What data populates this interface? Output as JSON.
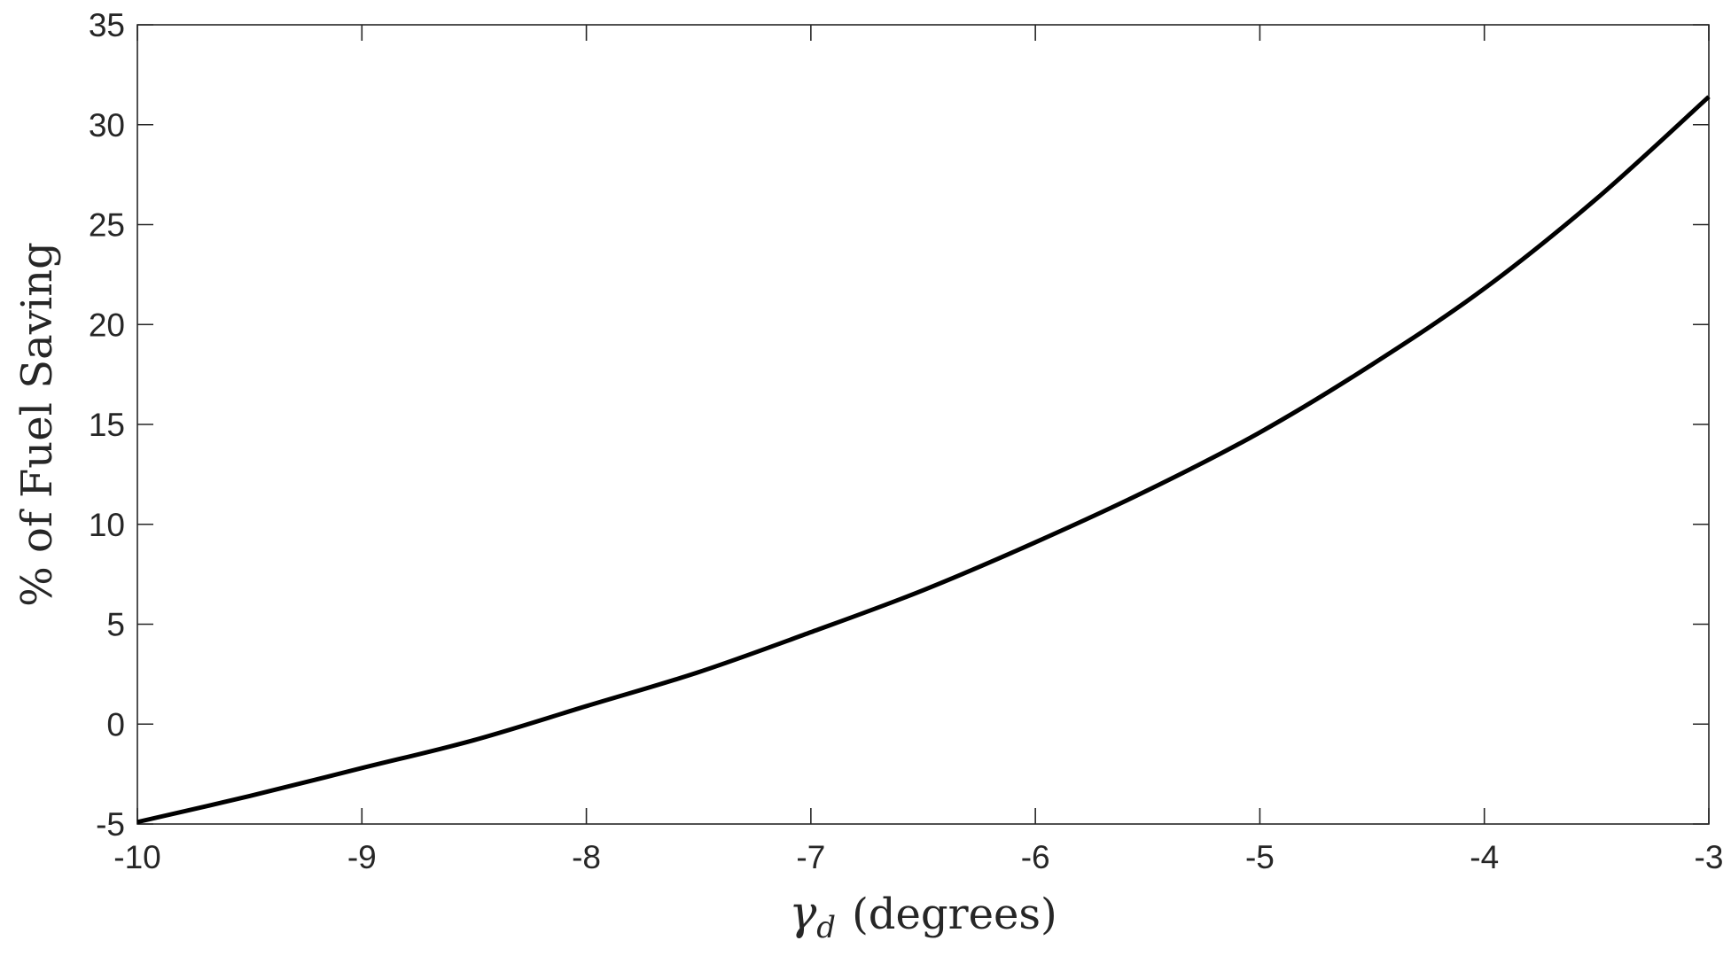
{
  "chart_data": {
    "type": "line",
    "xlabel": {
      "symbol": "γ",
      "subscript": "d",
      "suffix": "(degrees)"
    },
    "ylabel": "% of Fuel Saving",
    "xlim": [
      -10,
      -3
    ],
    "ylim": [
      -5,
      35
    ],
    "xticks": [
      -10,
      -9,
      -8,
      -7,
      -6,
      -5,
      -4,
      -3
    ],
    "yticks": [
      -5,
      0,
      5,
      10,
      15,
      20,
      25,
      30,
      35
    ],
    "grid": false,
    "series": [
      {
        "color": "#000000",
        "x": [
          -10,
          -9.5,
          -9,
          -8.5,
          -8,
          -7.5,
          -7,
          -6.5,
          -6,
          -5.5,
          -5,
          -4.5,
          -4,
          -3.5,
          -3
        ],
        "y": [
          -4.9,
          -3.6,
          -2.2,
          -0.8,
          0.9,
          2.6,
          4.6,
          6.7,
          9.1,
          11.7,
          14.6,
          18.0,
          21.8,
          26.3,
          31.4
        ]
      }
    ]
  }
}
